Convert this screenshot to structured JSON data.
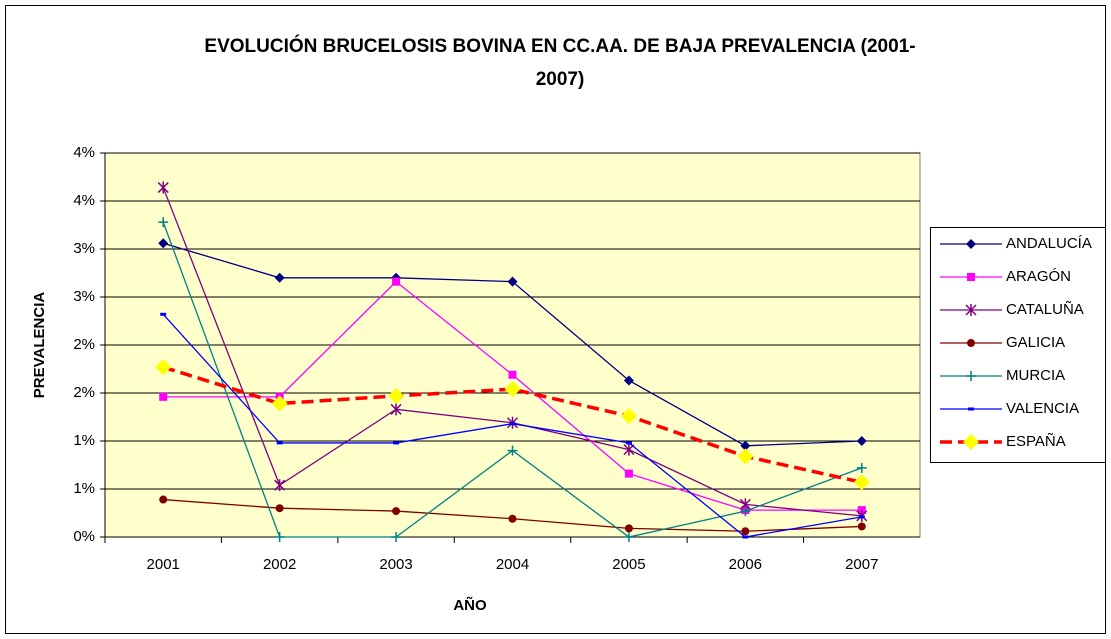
{
  "chart_data": {
    "type": "line",
    "title": "EVOLUCIÓN BRUCELOSIS BOVINA EN CC.AA. DE BAJA PREVALENCIA (2001-2007)",
    "x_label": "AÑO",
    "y_label": "PREVALENCIA",
    "categories": [
      "2001",
      "2002",
      "2003",
      "2004",
      "2005",
      "2006",
      "2007"
    ],
    "ylim": [
      0,
      4
    ],
    "yticks": [
      {
        "value": 0,
        "label": "0%"
      },
      {
        "value": 0.5,
        "label": "1%"
      },
      {
        "value": 1,
        "label": "1%"
      },
      {
        "value": 1.5,
        "label": "2%"
      },
      {
        "value": 2,
        "label": "2%"
      },
      {
        "value": 2.5,
        "label": "3%"
      },
      {
        "value": 3,
        "label": "3%"
      },
      {
        "value": 3.5,
        "label": "4%"
      },
      {
        "value": 4,
        "label": "4%"
      }
    ],
    "grid": true,
    "legend": "right",
    "series": [
      {
        "name": "ANDALUCÍA",
        "color": "#000080",
        "marker": "diamond",
        "values": [
          3.06,
          2.7,
          2.7,
          2.66,
          1.63,
          0.95,
          1.0
        ]
      },
      {
        "name": "ARAGÓN",
        "color": "#ff00ff",
        "marker": "square",
        "values": [
          1.46,
          1.46,
          2.66,
          1.69,
          0.66,
          0.28,
          0.28
        ]
      },
      {
        "name": "CATALUÑA",
        "color": "#800080",
        "marker": "star",
        "values": [
          3.64,
          0.54,
          1.33,
          1.19,
          0.91,
          0.34,
          0.22
        ]
      },
      {
        "name": "GALICIA",
        "color": "#800000",
        "marker": "circle",
        "values": [
          0.39,
          0.3,
          0.27,
          0.19,
          0.09,
          0.06,
          0.11
        ]
      },
      {
        "name": "MURCIA",
        "color": "#008080",
        "marker": "plus",
        "values": [
          3.28,
          0,
          0,
          0.9,
          0,
          0.27,
          0.72
        ]
      },
      {
        "name": "VALENCIA",
        "color": "#0000ff",
        "marker": "dash",
        "values": [
          2.32,
          0.98,
          0.98,
          1.18,
          0.98,
          0,
          0.21
        ]
      },
      {
        "name": "ESPAÑA",
        "color": "#ff0000",
        "marker": "diamond",
        "marker_color": "#ffff00",
        "dashed": true,
        "values": [
          1.77,
          1.39,
          1.47,
          1.54,
          1.26,
          0.84,
          0.57
        ]
      }
    ]
  }
}
